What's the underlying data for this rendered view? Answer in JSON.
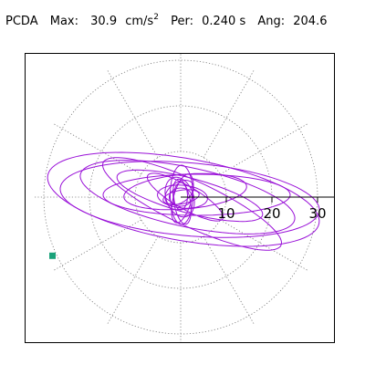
{
  "header": {
    "station": "PCDA",
    "max_label": "Max:",
    "max_value": "30.9",
    "max_unit": "cm/s",
    "max_unit_exp": "2",
    "per_label": "Per:",
    "per_value": "0.240 s",
    "ang_label": "Ang:",
    "ang_value": "204.6"
  },
  "chart_data": {
    "type": "polar-scatter",
    "radial_ticks": [
      "10",
      "20",
      "30"
    ],
    "radial_tick_values": [
      10,
      20,
      30
    ],
    "r_max": 30.9,
    "grid": true,
    "spoke_angles_deg": [
      0,
      30,
      60,
      90,
      120,
      150,
      180,
      210,
      240,
      270,
      300,
      330
    ],
    "trace_color": "#9a12d8",
    "peak_marker": {
      "r": 30.9,
      "angle_deg": 204.6,
      "color": "#1aa27a"
    },
    "orbits": [
      {
        "cx": 0.6,
        "cy": -0.5,
        "a": 30.2,
        "b": 9.0,
        "rot": -10
      },
      {
        "cx": 2.0,
        "cy": -0.5,
        "a": 28.5,
        "b": 8.0,
        "rot": -5
      },
      {
        "cx": 1.5,
        "cy": 0.0,
        "a": 24.0,
        "b": 6.5,
        "rot": -12
      },
      {
        "cx": 3.5,
        "cy": 0.5,
        "a": 20.5,
        "b": 4.5,
        "rot": 0
      },
      {
        "cx": 2.0,
        "cy": 0.3,
        "a": 16.5,
        "b": 3.8,
        "rot": -15
      },
      {
        "cx": 1.0,
        "cy": 1.2,
        "a": 13.5,
        "b": 3.8,
        "rot": 5
      },
      {
        "cx": 2.5,
        "cy": -1.5,
        "a": 21.5,
        "b": 5.0,
        "rot": -25
      },
      {
        "cx": 1.0,
        "cy": 0.0,
        "a": 9.5,
        "b": 2.5,
        "rot": -30
      },
      {
        "cx": 0.2,
        "cy": 0.5,
        "a": 2.5,
        "b": 6.5,
        "rot": 0
      },
      {
        "cx": -0.2,
        "cy": 0.0,
        "a": 3.0,
        "b": 4.5,
        "rot": 20
      },
      {
        "cx": 0.4,
        "cy": -0.3,
        "a": 2.0,
        "b": 5.5,
        "rot": -15
      },
      {
        "cx": 0.0,
        "cy": 0.2,
        "a": 1.5,
        "b": 3.0,
        "rot": 0
      },
      {
        "cx": 0.1,
        "cy": 0.0,
        "a": 4.0,
        "b": 1.5,
        "rot": 10
      },
      {
        "cx": 0.0,
        "cy": 0.0,
        "a": 2.5,
        "b": 2.0,
        "rot": 0
      },
      {
        "cx": 0.4,
        "cy": 0.1,
        "a": 5.5,
        "b": 2.5,
        "rot": -5
      },
      {
        "cx": -0.3,
        "cy": 1.0,
        "a": 3.5,
        "b": 2.2,
        "rot": 35
      },
      {
        "cx": 0.3,
        "cy": -1.0,
        "a": 1.8,
        "b": 5.0,
        "rot": 10
      }
    ]
  }
}
